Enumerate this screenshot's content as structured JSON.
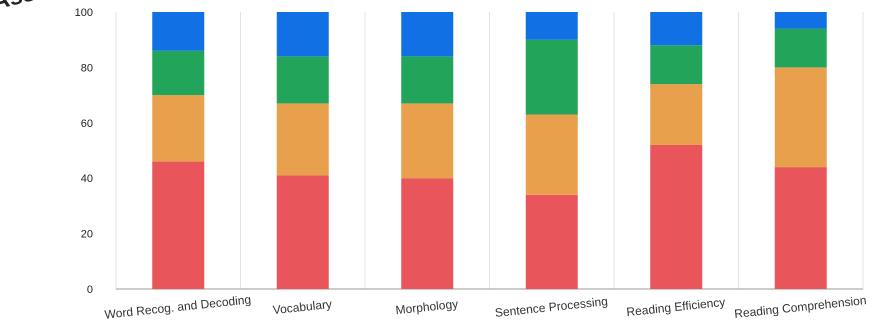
{
  "partial_title": "Asse",
  "chart_data": {
    "type": "bar",
    "stacked": true,
    "categories": [
      "Word Recog. and Decoding",
      "Vocabulary",
      "Morphology",
      "Sentence Processing",
      "Reading Efficiency",
      "Reading Comprehension"
    ],
    "series": [
      {
        "color": "#e8555a",
        "values": [
          46,
          41,
          40,
          34,
          52,
          44
        ]
      },
      {
        "color": "#e8a04d",
        "values": [
          24,
          26,
          27,
          29,
          22,
          36
        ]
      },
      {
        "color": "#22a55a",
        "values": [
          16,
          17,
          17,
          27,
          14,
          14
        ]
      },
      {
        "color": "#1170e3",
        "values": [
          14,
          16,
          16,
          10,
          12,
          6
        ]
      }
    ],
    "ylim": [
      0,
      100
    ],
    "yticks": [
      0,
      20,
      40,
      60,
      80,
      100
    ],
    "xlabel": "",
    "ylabel": "",
    "title": "",
    "grid": "vertical"
  }
}
